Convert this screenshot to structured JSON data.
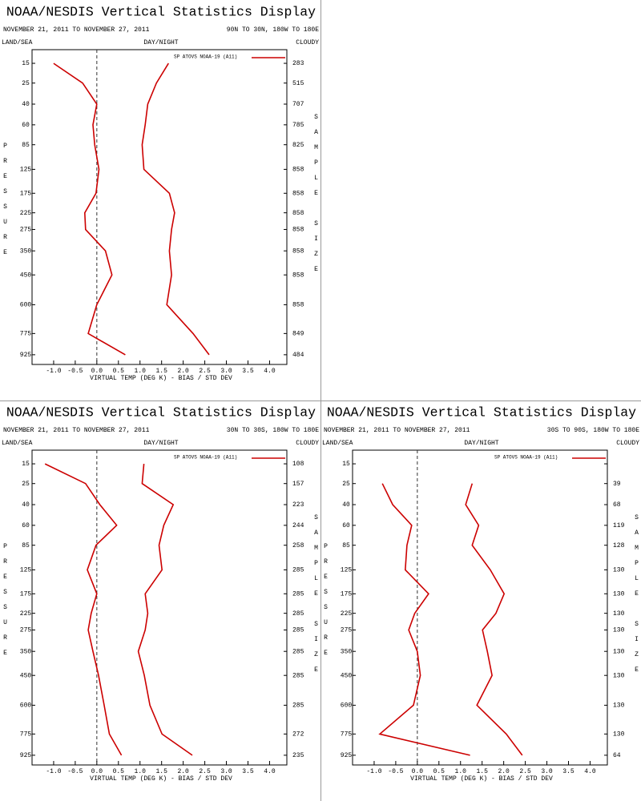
{
  "chart_data": [
    {
      "type": "line",
      "title": "NOAA/NESDIS Vertical Statistics Display",
      "subtitle": "NOVEMBER 21, 2011 TO NOVEMBER 27, 2011",
      "region": "90N TO 30N, 180W TO 180E",
      "left_header": "LAND/SEA",
      "center_header": "DAY/NIGHT",
      "right_header": "CLOUDY",
      "y_label": "PRESSURE",
      "y2_label": "SAMPLE SIZE",
      "x_label": "VIRTUAL TEMP (DEG K) - BIAS / STD DEV",
      "y": [
        15,
        25,
        40,
        60,
        85,
        125,
        175,
        225,
        275,
        350,
        450,
        600,
        775,
        925
      ],
      "sample_size": [
        283,
        515,
        707,
        785,
        825,
        858,
        858,
        858,
        858,
        858,
        858,
        858,
        849,
        484
      ],
      "series": [
        {
          "name": "SP ATOVS NOAA-19 (A11)",
          "color": "#cc0000",
          "bias": [
            -1.0,
            -0.33,
            0.0,
            -0.09,
            -0.05,
            0.05,
            -0.02,
            -0.28,
            -0.26,
            0.2,
            0.35,
            0.0,
            -0.2,
            0.66
          ],
          "std_dev": [
            1.66,
            1.38,
            1.18,
            1.12,
            1.05,
            1.09,
            1.68,
            1.8,
            1.73,
            1.68,
            1.73,
            1.62,
            2.23,
            2.6
          ]
        }
      ],
      "xlim": [
        -1.5,
        4.4
      ],
      "xticks": [
        {
          "value": -1,
          "label": "-1.0"
        },
        -0.5,
        {
          "value": 0,
          "label": "0.0"
        },
        0.5,
        {
          "value": 1,
          "label": "1.0"
        },
        1.5,
        {
          "value": 2,
          "label": "2.0"
        },
        2.5,
        {
          "value": 3,
          "label": "3.0"
        },
        3.5,
        {
          "value": 4,
          "label": "4.0"
        }
      ],
      "ylim": [
        10,
        1000
      ],
      "yticks": [
        15,
        25,
        40,
        60,
        85,
        125,
        175,
        225,
        275,
        350,
        450,
        600,
        775,
        925
      ],
      "y_inverted": true,
      "zero_line": 0
    },
    {
      "type": "line",
      "title": "NOAA/NESDIS Vertical Statistics Display",
      "subtitle": "NOVEMBER 21, 2011 TO NOVEMBER 27, 2011",
      "region": "30N TO 30S, 180W TO 180E",
      "left_header": "LAND/SEA",
      "center_header": "DAY/NIGHT",
      "right_header": "CLOUDY",
      "y_label": "PRESSURE",
      "y2_label": "SAMPLE SIZE",
      "x_label": "VIRTUAL TEMP (DEG K) - BIAS / STD DEV",
      "y": [
        15,
        25,
        40,
        60,
        85,
        125,
        175,
        225,
        275,
        350,
        450,
        600,
        775,
        925
      ],
      "sample_size": [
        108,
        157,
        223,
        244,
        258,
        285,
        285,
        285,
        285,
        285,
        285,
        285,
        272,
        235
      ],
      "series": [
        {
          "name": "SP ATOVS NOAA-19 (A11)",
          "color": "#cc0000",
          "bias": [
            -1.2,
            -0.26,
            0.07,
            0.46,
            -0.02,
            -0.22,
            0.0,
            -0.13,
            -0.2,
            -0.09,
            0.04,
            0.17,
            0.29,
            0.57
          ],
          "std_dev": [
            1.09,
            1.05,
            1.77,
            1.55,
            1.44,
            1.51,
            1.12,
            1.18,
            1.12,
            0.96,
            1.1,
            1.23,
            1.51,
            2.21
          ]
        }
      ],
      "xlim": [
        -1.5,
        4.4
      ],
      "xticks": [
        {
          "value": -1,
          "label": "-1.0"
        },
        -0.5,
        {
          "value": 0,
          "label": "0.0"
        },
        0.5,
        {
          "value": 1,
          "label": "1.0"
        },
        1.5,
        {
          "value": 2,
          "label": "2.0"
        },
        2.5,
        {
          "value": 3,
          "label": "3.0"
        },
        3.5,
        {
          "value": 4,
          "label": "4.0"
        }
      ],
      "ylim": [
        10,
        1000
      ],
      "yticks": [
        15,
        25,
        40,
        60,
        85,
        125,
        175,
        225,
        275,
        350,
        450,
        600,
        775,
        925
      ],
      "y_inverted": true,
      "zero_line": 0
    },
    {
      "type": "line",
      "title": "NOAA/NESDIS Vertical Statistics Display",
      "subtitle": "NOVEMBER 21, 2011 TO NOVEMBER 27, 2011",
      "region": "30S TO 90S, 180W TO 180E",
      "left_header": "LAND/SEA",
      "center_header": "DAY/NIGHT",
      "right_header": "CLOUDY",
      "y_label": "PRESSURE",
      "y2_label": "SAMPLE SIZE",
      "x_label": "VIRTUAL TEMP (DEG K) - BIAS / STD DEV",
      "y": [
        15,
        25,
        40,
        60,
        85,
        125,
        175,
        225,
        275,
        350,
        450,
        600,
        775,
        925
      ],
      "sample_size": [
        null,
        39,
        68,
        119,
        128,
        130,
        130,
        130,
        130,
        130,
        130,
        130,
        130,
        64
      ],
      "series": [
        {
          "name": "SP ATOVS NOAA-19 (A11)",
          "color": "#cc0000",
          "bias": [
            null,
            -0.81,
            -0.57,
            -0.13,
            -0.24,
            -0.28,
            0.26,
            -0.06,
            -0.2,
            0.0,
            0.07,
            -0.09,
            -0.87,
            1.22
          ],
          "std_dev": [
            null,
            1.27,
            1.12,
            1.42,
            1.27,
            1.69,
            2.01,
            1.82,
            1.51,
            1.62,
            1.73,
            1.38,
            2.06,
            2.43
          ]
        }
      ],
      "xlim": [
        -1.5,
        4.4
      ],
      "xticks": [
        {
          "value": -1,
          "label": "-1.0"
        },
        -0.5,
        {
          "value": 0,
          "label": "0.0"
        },
        0.5,
        {
          "value": 1,
          "label": "1.0"
        },
        1.5,
        {
          "value": 2,
          "label": "2.0"
        },
        2.5,
        {
          "value": 3,
          "label": "3.0"
        },
        3.5,
        {
          "value": 4,
          "label": "4.0"
        }
      ],
      "ylim": [
        10,
        1000
      ],
      "yticks": [
        15,
        25,
        40,
        60,
        85,
        125,
        175,
        225,
        275,
        350,
        450,
        600,
        775,
        925
      ],
      "y_inverted": true,
      "zero_line": 0
    }
  ]
}
